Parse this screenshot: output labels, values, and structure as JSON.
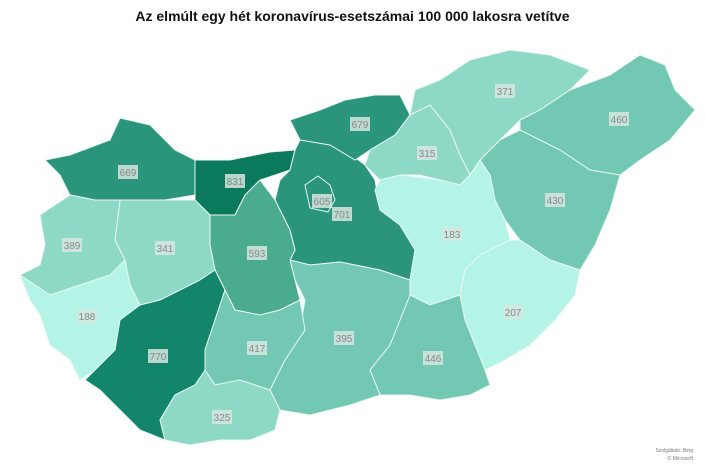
{
  "title": "Az elmúlt egy hét koronavírus-esetszámai 100 000 lakosra vetítve",
  "attribution": {
    "provider": "Szolgáltató: Bing",
    "copyright": "© Microsoft"
  },
  "colors": {
    "831": "#0b7a5c",
    "770": "#12856a",
    "high": "#2a957a",
    "mid": "#4aab8f",
    "low": "#72c8b3",
    "lower": "#8ed8c6",
    "lowest": "#b3f4e6"
  },
  "regions": [
    {
      "id": "gyor",
      "value": "669",
      "color": "#2a957a"
    },
    {
      "id": "komarom",
      "value": "831",
      "color": "#0b7a5c"
    },
    {
      "id": "pest",
      "value": "701",
      "color": "#2a957a"
    },
    {
      "id": "budapest",
      "value": "605",
      "color": "#2a957a"
    },
    {
      "id": "nograd",
      "value": "679",
      "color": "#2a957a"
    },
    {
      "id": "heves",
      "value": "315",
      "color": "#8ed8c6"
    },
    {
      "id": "borsod",
      "value": "371",
      "color": "#8ed8c6"
    },
    {
      "id": "szabolcs",
      "value": "460",
      "color": "#72c8b3"
    },
    {
      "id": "hajdu",
      "value": "430",
      "color": "#72c8b3"
    },
    {
      "id": "szolnok",
      "value": "183",
      "color": "#b3f4e6"
    },
    {
      "id": "bekes",
      "value": "207",
      "color": "#b3f4e6"
    },
    {
      "id": "csongrad",
      "value": "446",
      "color": "#72c8b3"
    },
    {
      "id": "bacs",
      "value": "395",
      "color": "#72c8b3"
    },
    {
      "id": "fejer",
      "value": "593",
      "color": "#4aab8f"
    },
    {
      "id": "veszprem",
      "value": "341",
      "color": "#8ed8c6"
    },
    {
      "id": "vas",
      "value": "389",
      "color": "#8ed8c6"
    },
    {
      "id": "zala",
      "value": "188",
      "color": "#b3f4e6"
    },
    {
      "id": "somogy",
      "value": "770",
      "color": "#12856a"
    },
    {
      "id": "tolna",
      "value": "417",
      "color": "#72c8b3"
    },
    {
      "id": "baranya",
      "value": "325",
      "color": "#8ed8c6"
    }
  ]
}
